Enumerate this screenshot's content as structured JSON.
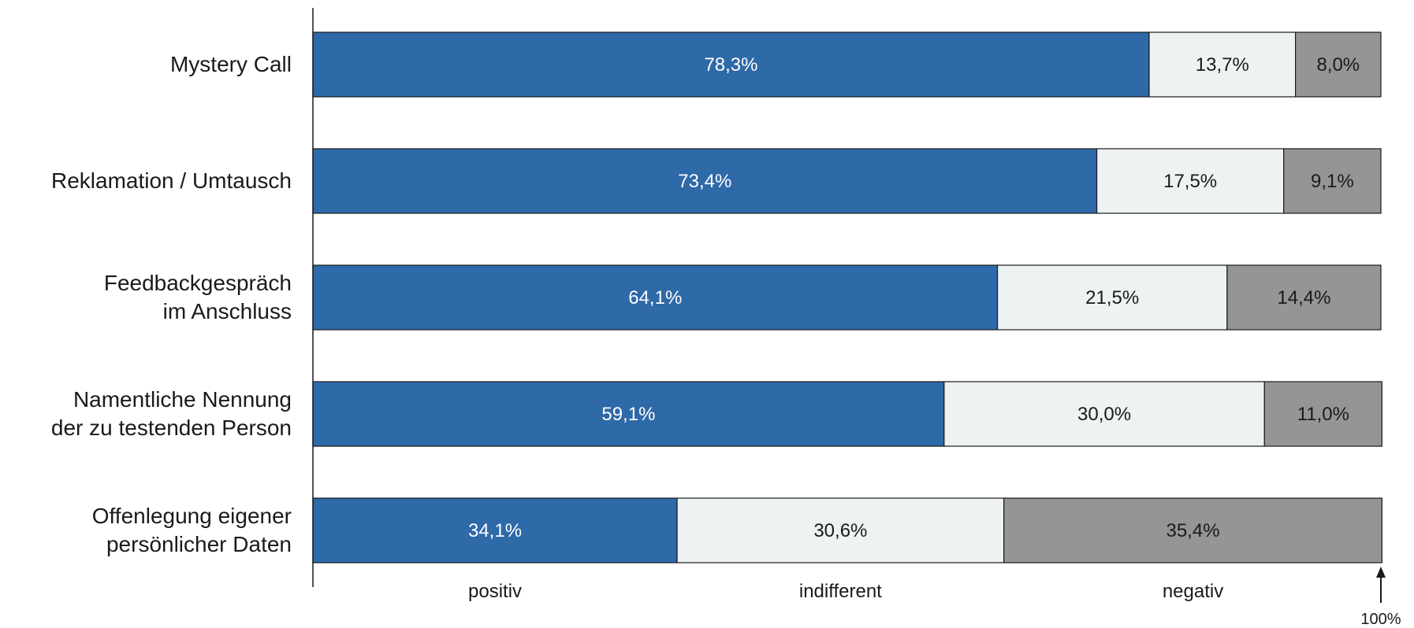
{
  "chart_data": {
    "type": "bar",
    "orientation": "horizontal",
    "stacked": true,
    "normalized": true,
    "categories": [
      [
        "Mystery Call"
      ],
      [
        "Reklamation / Umtausch"
      ],
      [
        "Feedbackgespräch",
        "im Anschluss"
      ],
      [
        "Namentliche Nennung",
        "der zu testenden Person"
      ],
      [
        "Offenlegung eigener",
        "persönlicher Daten"
      ]
    ],
    "series": [
      {
        "name": "positiv",
        "color": "#2e69a8",
        "label_color": "#ffffff",
        "values": [
          78.3,
          73.4,
          64.1,
          59.1,
          34.1
        ],
        "labels": [
          "78,3%",
          "73,4%",
          "64,1%",
          "59,1%",
          "34,1%"
        ]
      },
      {
        "name": "indifferent",
        "color": "#eef2f3",
        "label_color": "#1a1a1a",
        "values": [
          13.7,
          17.5,
          21.5,
          30.0,
          30.6
        ],
        "labels": [
          "13,7%",
          "17,5%",
          "21,5%",
          "30,0%",
          "30,6%"
        ]
      },
      {
        "name": "negativ",
        "color": "#959595",
        "label_color": "#1a1a1a",
        "values": [
          8.0,
          9.1,
          14.4,
          11.0,
          35.4
        ],
        "labels": [
          "8,0%",
          "9,1%",
          "14,4%",
          "11,0%",
          "35,4%"
        ]
      }
    ],
    "xlim": [
      0,
      100
    ],
    "end_marker_label": "100%",
    "grid": false,
    "legend_position": "bottom"
  }
}
